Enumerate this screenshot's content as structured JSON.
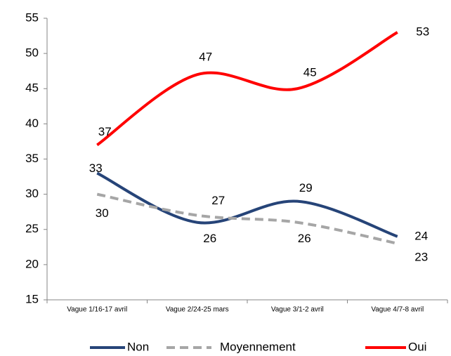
{
  "chart_data": {
    "type": "line",
    "categories": [
      "Vague 1/16-17 avril",
      "Vague 2/24-25 mars",
      "Vague 3/1-2 avril",
      "Vague 4/7-8 avril"
    ],
    "series": [
      {
        "name": "Non",
        "color": "#264478",
        "dash": false,
        "values": [
          33,
          26,
          29,
          24
        ]
      },
      {
        "name": "Moyennement",
        "color": "#a6a6a6",
        "dash": true,
        "values": [
          30,
          27,
          26,
          23
        ]
      },
      {
        "name": "Oui",
        "color": "#ff0000",
        "dash": false,
        "values": [
          37,
          47,
          45,
          53
        ]
      }
    ],
    "ylim": [
      15,
      55
    ],
    "yticks": [
      15,
      20,
      25,
      30,
      35,
      40,
      45,
      50,
      55
    ],
    "grid": false,
    "smooth": true,
    "legend": "bottom"
  }
}
